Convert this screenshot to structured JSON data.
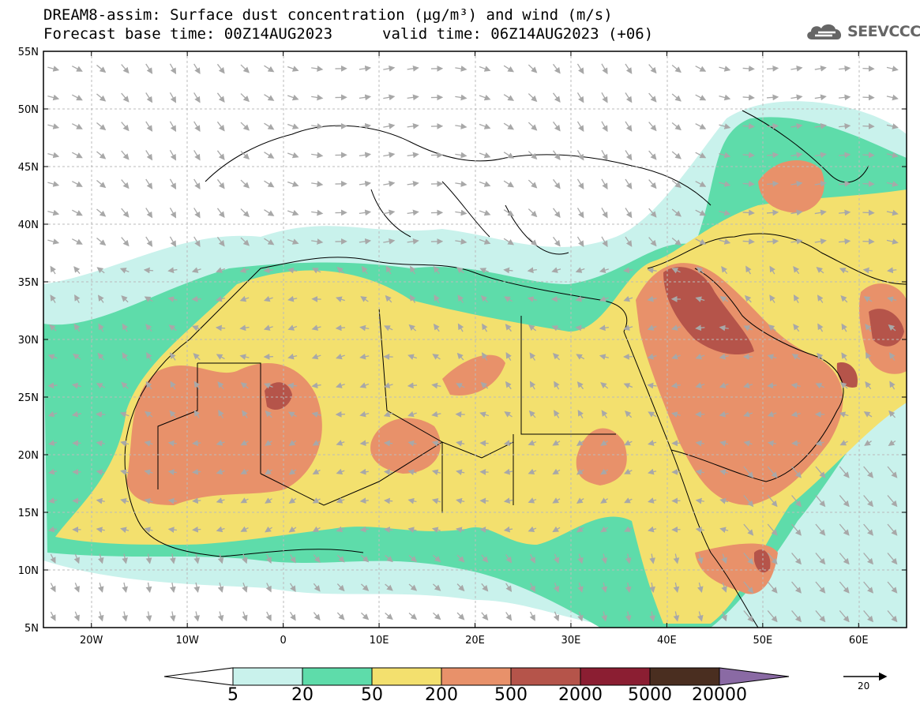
{
  "title": {
    "line1": "DREAM8-assim: Surface dust concentration (µg/m³) and wind (m/s)",
    "base_time": "Forecast base time: 00Z14AUG2023",
    "valid_time": "valid time: 06Z14AUG2023 (+06)"
  },
  "logo": {
    "text": "SEEVCCC",
    "icon": "cloud-icon"
  },
  "map": {
    "lat_labels": [
      "55N",
      "50N",
      "45N",
      "40N",
      "35N",
      "30N",
      "25N",
      "20N",
      "15N",
      "10N",
      "5N"
    ],
    "lon_labels": [
      "20W",
      "10W",
      "0",
      "10E",
      "20E",
      "30E",
      "40E",
      "50E",
      "60E"
    ],
    "lon_range": [
      -25,
      65
    ],
    "lat_range": [
      5,
      55
    ],
    "region": "North Africa, Middle East, Europe"
  },
  "colorbar": {
    "labels": [
      "5",
      "20",
      "50",
      "200",
      "500",
      "2000",
      "5000",
      "20000"
    ],
    "colors": [
      "#c9f2ec",
      "#5edcaa",
      "#f3e06e",
      "#e8916a",
      "#b5544a",
      "#8b1e32",
      "#4a2e20"
    ],
    "under_color": "#ffffff",
    "over_color": "#8a6aa4"
  },
  "wind_reference": {
    "label": "20"
  },
  "legend_colors": {
    "land": "#ffffff",
    "wind_arrow": "#a8a8a8",
    "border": "#000000"
  }
}
